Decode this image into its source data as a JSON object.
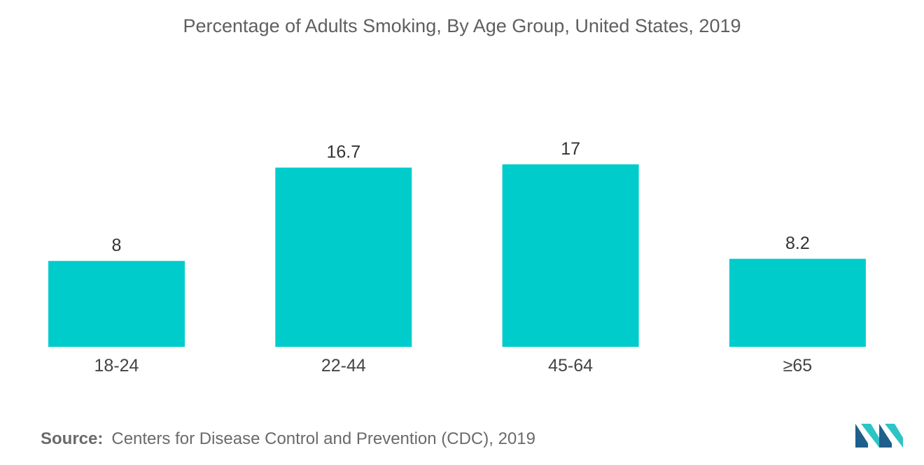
{
  "colors": {
    "bar": "#00cccc",
    "logo_dark": "#1f5f8b",
    "logo_light": "#2ec4c6"
  },
  "chart_data": {
    "type": "bar",
    "title": "Percentage of Adults Smoking, By Age Group, United States, 2019",
    "categories": [
      "18-24",
      "22-44",
      "45-64",
      "≥65"
    ],
    "values": [
      8,
      16.7,
      17,
      8.2
    ],
    "value_labels": [
      "8",
      "16.7",
      "17",
      "8.2"
    ],
    "ylim": [
      0,
      20
    ],
    "grid": false,
    "legend": "none"
  },
  "source": {
    "label": "Source:",
    "text": "Centers for Disease Control and Prevention (CDC), 2019"
  },
  "logo": {
    "icon": "mordor-logo-icon"
  }
}
